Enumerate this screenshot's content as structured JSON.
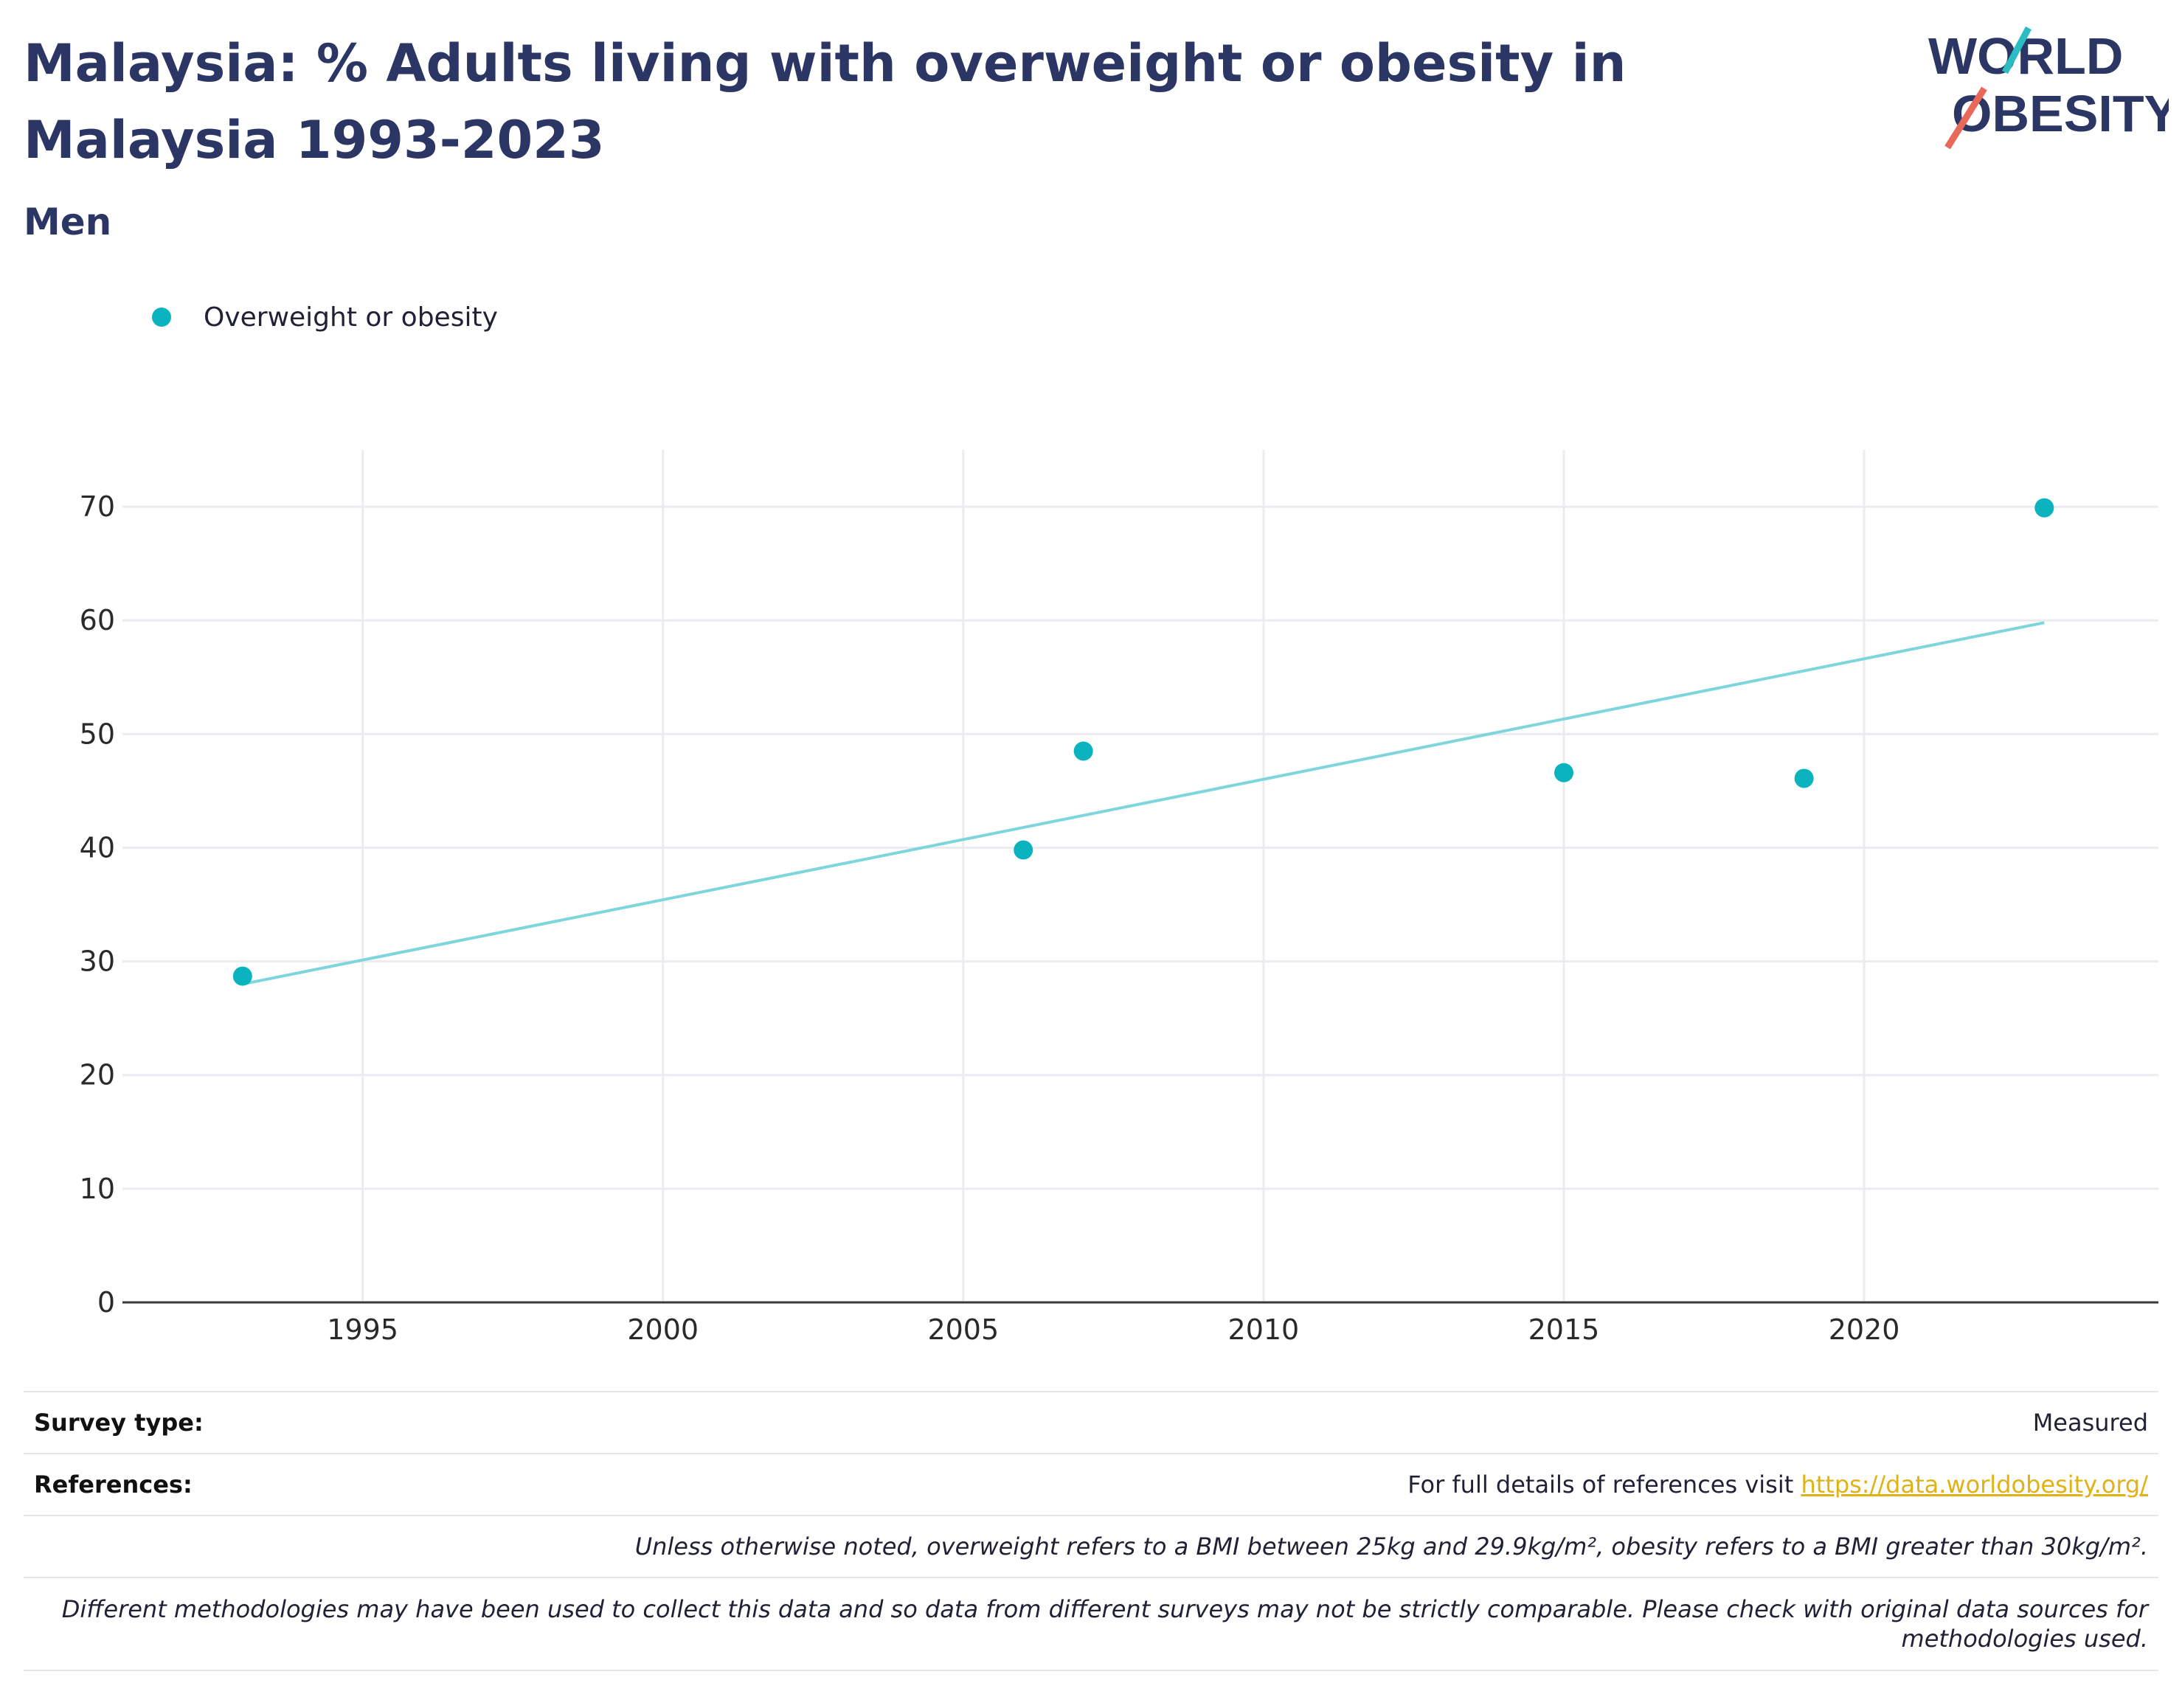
{
  "header": {
    "title": "Malaysia: % Adults living with overweight or obesity in Malaysia 1993-2023",
    "subtitle": "Men"
  },
  "logo": {
    "line1": "WORLD",
    "line2": "OBESITY",
    "colors": {
      "text": "#2b3664",
      "teal": "#2bbcc4",
      "coral": "#e8695a"
    }
  },
  "legend": {
    "label": "Overweight or obesity"
  },
  "colors": {
    "marker": "#0bb3bf",
    "trendline": "#7dd6db",
    "grid": "#ececf0",
    "axis": "#3a3a3a",
    "title": "#2b3664",
    "link": "#e1b214"
  },
  "chart_data": {
    "type": "scatter",
    "series": [
      {
        "name": "Overweight or obesity",
        "x": [
          1993,
          2006,
          2007,
          2015,
          2019,
          2023
        ],
        "y": [
          28.7,
          39.8,
          48.5,
          46.6,
          46.1,
          69.9
        ]
      }
    ],
    "trendline": {
      "x": [
        1993,
        2023
      ],
      "y": [
        28.0,
        59.8
      ]
    },
    "xlim": [
      1991,
      2024.9
    ],
    "ylim": [
      0,
      75
    ],
    "xticks": [
      1995,
      2000,
      2005,
      2010,
      2015,
      2020
    ],
    "yticks": [
      0,
      10,
      20,
      30,
      40,
      50,
      60,
      70
    ],
    "grid": true,
    "legend_position": "top-left"
  },
  "footer": {
    "survey_type_label": "Survey type:",
    "survey_type_value": "Measured",
    "references_label": "References:",
    "references_text": "For full details of references visit ",
    "references_link": "https://data.worldobesity.org/",
    "note1": "Unless otherwise noted, overweight refers to a BMI between 25kg and 29.9kg/m², obesity refers to a BMI greater than 30kg/m².",
    "note2": "Different methodologies may have been used to collect this data and so data from different surveys may not be strictly comparable. Please check with original data sources for methodologies used."
  }
}
